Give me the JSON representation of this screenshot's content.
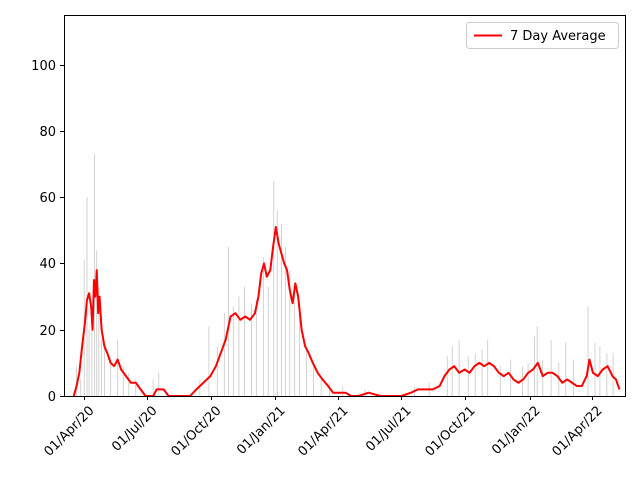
{
  "chart_data": {
    "type": "bar",
    "legend_placement": "top-right",
    "grid": false,
    "ylim": [
      0,
      115
    ],
    "yticks": [
      0,
      20,
      40,
      60,
      80,
      100
    ],
    "xlim": [
      "2020-03-04",
      "2022-05-18"
    ],
    "xticks": [
      {
        "date": "2020-04-01",
        "label": "01/Apr/20"
      },
      {
        "date": "2020-07-01",
        "label": "01/Jul/20"
      },
      {
        "date": "2020-10-01",
        "label": "01/Oct/20"
      },
      {
        "date": "2021-01-01",
        "label": "01/Jan/21"
      },
      {
        "date": "2021-04-01",
        "label": "01/Apr/21"
      },
      {
        "date": "2021-07-01",
        "label": "01/Jul/21"
      },
      {
        "date": "2021-10-01",
        "label": "01/Oct/21"
      },
      {
        "date": "2022-01-01",
        "label": "01/Jan/22"
      },
      {
        "date": "2022-04-01",
        "label": "01/Apr/22"
      }
    ],
    "series": [
      {
        "name": "7 Day Average",
        "kind": "line",
        "color": "#ff0000",
        "points": [
          [
            "2020-03-18",
            0
          ],
          [
            "2020-03-22",
            3
          ],
          [
            "2020-03-26",
            7
          ],
          [
            "2020-03-30",
            15
          ],
          [
            "2020-04-03",
            22
          ],
          [
            "2020-04-06",
            29
          ],
          [
            "2020-04-09",
            31
          ],
          [
            "2020-04-12",
            27
          ],
          [
            "2020-04-14",
            20
          ],
          [
            "2020-04-16",
            35
          ],
          [
            "2020-04-18",
            30
          ],
          [
            "2020-04-20",
            38
          ],
          [
            "2020-04-22",
            25
          ],
          [
            "2020-04-24",
            30
          ],
          [
            "2020-04-27",
            20
          ],
          [
            "2020-05-01",
            15
          ],
          [
            "2020-05-05",
            13
          ],
          [
            "2020-05-10",
            10
          ],
          [
            "2020-05-15",
            9
          ],
          [
            "2020-05-20",
            11
          ],
          [
            "2020-05-25",
            8
          ],
          [
            "2020-06-01",
            6
          ],
          [
            "2020-06-08",
            4
          ],
          [
            "2020-06-15",
            4
          ],
          [
            "2020-06-22",
            2
          ],
          [
            "2020-06-29",
            0
          ],
          [
            "2020-07-10",
            0
          ],
          [
            "2020-07-15",
            2
          ],
          [
            "2020-07-25",
            2
          ],
          [
            "2020-08-01",
            0
          ],
          [
            "2020-09-01",
            0
          ],
          [
            "2020-09-10",
            2
          ],
          [
            "2020-09-20",
            4
          ],
          [
            "2020-09-30",
            6
          ],
          [
            "2020-10-08",
            9
          ],
          [
            "2020-10-15",
            13
          ],
          [
            "2020-10-22",
            17
          ],
          [
            "2020-10-29",
            24
          ],
          [
            "2020-11-05",
            25
          ],
          [
            "2020-11-12",
            23
          ],
          [
            "2020-11-19",
            24
          ],
          [
            "2020-11-26",
            23
          ],
          [
            "2020-12-03",
            25
          ],
          [
            "2020-12-08",
            30
          ],
          [
            "2020-12-12",
            37
          ],
          [
            "2020-12-16",
            40
          ],
          [
            "2020-12-20",
            36
          ],
          [
            "2020-12-25",
            38
          ],
          [
            "2020-12-29",
            45
          ],
          [
            "2021-01-02",
            51
          ],
          [
            "2021-01-06",
            46
          ],
          [
            "2021-01-10",
            43
          ],
          [
            "2021-01-14",
            40
          ],
          [
            "2021-01-18",
            38
          ],
          [
            "2021-01-22",
            32
          ],
          [
            "2021-01-26",
            28
          ],
          [
            "2021-01-30",
            34
          ],
          [
            "2021-02-03",
            30
          ],
          [
            "2021-02-08",
            20
          ],
          [
            "2021-02-13",
            15
          ],
          [
            "2021-02-18",
            13
          ],
          [
            "2021-02-24",
            10
          ],
          [
            "2021-03-03",
            7
          ],
          [
            "2021-03-10",
            5
          ],
          [
            "2021-03-18",
            3
          ],
          [
            "2021-03-25",
            1
          ],
          [
            "2021-04-05",
            1
          ],
          [
            "2021-04-12",
            1
          ],
          [
            "2021-04-20",
            0
          ],
          [
            "2021-05-01",
            0
          ],
          [
            "2021-05-15",
            1
          ],
          [
            "2021-06-01",
            0
          ],
          [
            "2021-07-01",
            0
          ],
          [
            "2021-07-15",
            1
          ],
          [
            "2021-07-25",
            2
          ],
          [
            "2021-08-05",
            2
          ],
          [
            "2021-08-15",
            2
          ],
          [
            "2021-08-25",
            3
          ],
          [
            "2021-09-01",
            6
          ],
          [
            "2021-09-08",
            8
          ],
          [
            "2021-09-15",
            9
          ],
          [
            "2021-09-22",
            7
          ],
          [
            "2021-09-30",
            8
          ],
          [
            "2021-10-07",
            7
          ],
          [
            "2021-10-14",
            9
          ],
          [
            "2021-10-21",
            10
          ],
          [
            "2021-10-28",
            9
          ],
          [
            "2021-11-04",
            10
          ],
          [
            "2021-11-11",
            9
          ],
          [
            "2021-11-18",
            7
          ],
          [
            "2021-11-25",
            6
          ],
          [
            "2021-12-02",
            7
          ],
          [
            "2021-12-09",
            5
          ],
          [
            "2021-12-16",
            4
          ],
          [
            "2021-12-23",
            5
          ],
          [
            "2021-12-30",
            7
          ],
          [
            "2022-01-06",
            8
          ],
          [
            "2022-01-13",
            10
          ],
          [
            "2022-01-20",
            6
          ],
          [
            "2022-01-27",
            7
          ],
          [
            "2022-02-03",
            7
          ],
          [
            "2022-02-10",
            6
          ],
          [
            "2022-02-17",
            4
          ],
          [
            "2022-02-24",
            5
          ],
          [
            "2022-03-03",
            4
          ],
          [
            "2022-03-10",
            3
          ],
          [
            "2022-03-17",
            3
          ],
          [
            "2022-03-24",
            6
          ],
          [
            "2022-03-28",
            11
          ],
          [
            "2022-04-02",
            7
          ],
          [
            "2022-04-09",
            6
          ],
          [
            "2022-04-16",
            8
          ],
          [
            "2022-04-23",
            9
          ],
          [
            "2022-04-30",
            6
          ],
          [
            "2022-05-05",
            5
          ],
          [
            "2022-05-10",
            2
          ]
        ]
      },
      {
        "kind": "bar",
        "color": "#c8c8c8",
        "points": [
          [
            "2020-03-22",
            9
          ],
          [
            "2020-03-28",
            5
          ],
          [
            "2020-04-02",
            41
          ],
          [
            "2020-04-06",
            60
          ],
          [
            "2020-04-09",
            20
          ],
          [
            "2020-04-13",
            25
          ],
          [
            "2020-04-17",
            73
          ],
          [
            "2020-04-20",
            44
          ],
          [
            "2020-04-23",
            33
          ],
          [
            "2020-04-27",
            17
          ],
          [
            "2020-05-01",
            15
          ],
          [
            "2020-05-10",
            12
          ],
          [
            "2020-05-20",
            17
          ],
          [
            "2020-05-28",
            9
          ],
          [
            "2020-06-05",
            7
          ],
          [
            "2020-06-15",
            5
          ],
          [
            "2020-07-10",
            5
          ],
          [
            "2020-07-18",
            7
          ],
          [
            "2020-09-15",
            5
          ],
          [
            "2020-09-28",
            21
          ],
          [
            "2020-10-10",
            15
          ],
          [
            "2020-10-20",
            25
          ],
          [
            "2020-10-26",
            45
          ],
          [
            "2020-11-02",
            27
          ],
          [
            "2020-11-10",
            30
          ],
          [
            "2020-11-18",
            33
          ],
          [
            "2020-11-28",
            28
          ],
          [
            "2020-12-05",
            29
          ],
          [
            "2020-12-15",
            42
          ],
          [
            "2020-12-22",
            33
          ],
          [
            "2020-12-30",
            65
          ],
          [
            "2021-01-04",
            56
          ],
          [
            "2021-01-10",
            52
          ],
          [
            "2021-01-16",
            45
          ],
          [
            "2021-01-22",
            38
          ],
          [
            "2021-01-29",
            33
          ],
          [
            "2021-02-05",
            25
          ],
          [
            "2021-02-15",
            15
          ],
          [
            "2021-02-25",
            9
          ],
          [
            "2021-03-08",
            6
          ],
          [
            "2021-03-20",
            4
          ],
          [
            "2021-04-08",
            3
          ],
          [
            "2021-05-10",
            2
          ],
          [
            "2021-07-20",
            3
          ],
          [
            "2021-08-10",
            4
          ],
          [
            "2021-09-05",
            12
          ],
          [
            "2021-09-12",
            15
          ],
          [
            "2021-09-22",
            17
          ],
          [
            "2021-10-05",
            12
          ],
          [
            "2021-10-15",
            13
          ],
          [
            "2021-10-25",
            14
          ],
          [
            "2021-11-02",
            17
          ],
          [
            "2021-11-20",
            9
          ],
          [
            "2021-12-05",
            11
          ],
          [
            "2021-12-22",
            9
          ],
          [
            "2021-12-30",
            10
          ],
          [
            "2022-01-08",
            18
          ],
          [
            "2022-01-12",
            21
          ],
          [
            "2022-01-20",
            11
          ],
          [
            "2022-02-01",
            17
          ],
          [
            "2022-02-12",
            10
          ],
          [
            "2022-02-22",
            16
          ],
          [
            "2022-03-05",
            11
          ],
          [
            "2022-03-26",
            27
          ],
          [
            "2022-04-05",
            16
          ],
          [
            "2022-04-12",
            15
          ],
          [
            "2022-04-22",
            13
          ],
          [
            "2022-05-01",
            13
          ]
        ]
      }
    ]
  }
}
